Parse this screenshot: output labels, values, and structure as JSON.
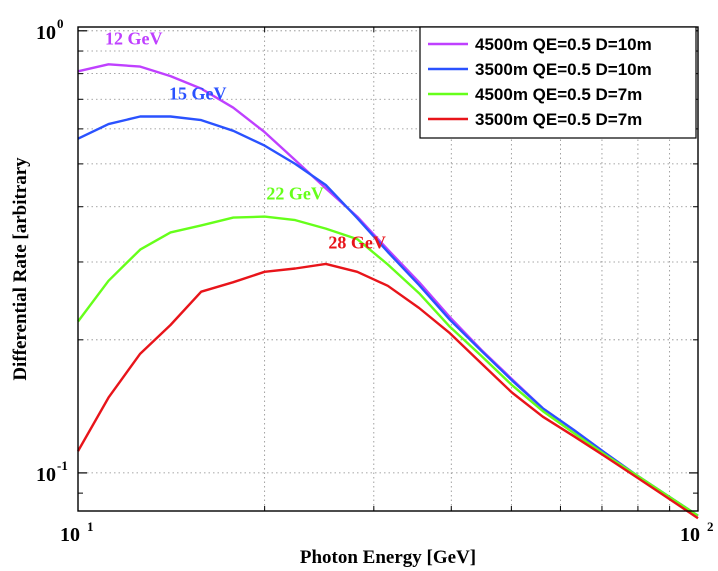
{
  "chart_data": {
    "type": "line",
    "title": "",
    "xlabel": "Photon Energy [GeV]",
    "ylabel": "Differential Rate [arbitrary",
    "xscale": "log",
    "yscale": "log",
    "xlim": [
      10,
      100
    ],
    "ylim": [
      0.082,
      1.02
    ],
    "grid": true,
    "legend_position": "top-right",
    "x_ticks": [
      {
        "base": "10",
        "exp": "1"
      },
      {
        "base": "10",
        "exp": "2"
      }
    ],
    "y_ticks": [
      {
        "base": "10",
        "exp": "-1"
      },
      {
        "base": "10",
        "exp": "0"
      }
    ],
    "x": [
      10,
      11.2,
      12.6,
      14.1,
      15.8,
      17.8,
      20,
      22.4,
      25.1,
      28.2,
      31.6,
      35.5,
      39.8,
      44.7,
      50.1,
      56.2,
      63.1,
      70.8,
      79.4,
      89.1,
      100
    ],
    "series": [
      {
        "name": "4500m QE=0.5 D=10m",
        "color": "#bf40ff",
        "values": [
          0.81,
          0.84,
          0.83,
          0.79,
          0.74,
          0.67,
          0.59,
          0.51,
          0.44,
          0.38,
          0.32,
          0.27,
          0.225,
          0.19,
          0.163,
          0.14,
          0.125,
          0.111,
          0.099,
          0.089,
          0.08
        ]
      },
      {
        "name": "3500m QE=0.5 D=10m",
        "color": "#2a52ff",
        "values": [
          0.57,
          0.615,
          0.64,
          0.64,
          0.628,
          0.594,
          0.55,
          0.5,
          0.448,
          0.377,
          0.316,
          0.266,
          0.222,
          0.189,
          0.162,
          0.14,
          0.125,
          0.111,
          0.099,
          0.089,
          0.08
        ]
      },
      {
        "name": "4500m QE=0.5 D=7m",
        "color": "#66ff1a",
        "values": [
          0.22,
          0.272,
          0.32,
          0.35,
          0.363,
          0.378,
          0.38,
          0.373,
          0.357,
          0.338,
          0.296,
          0.255,
          0.214,
          0.184,
          0.158,
          0.138,
          0.123,
          0.11,
          0.099,
          0.089,
          0.08
        ]
      },
      {
        "name": "3500m QE=0.5 D=7m",
        "color": "#e8141a",
        "values": [
          0.112,
          0.148,
          0.186,
          0.216,
          0.257,
          0.27,
          0.285,
          0.29,
          0.297,
          0.285,
          0.265,
          0.236,
          0.207,
          0.177,
          0.152,
          0.134,
          0.121,
          0.109,
          0.098,
          0.088,
          0.079
        ]
      }
    ],
    "annotations": [
      {
        "text": "12 GeV",
        "color": "#bf40ff",
        "x": 12.3,
        "y": 0.93
      },
      {
        "text": "15 GeV",
        "color": "#2a52ff",
        "x": 15.6,
        "y": 0.7
      },
      {
        "text": "22 GeV",
        "color": "#66ff1a",
        "x": 22.4,
        "y": 0.415
      },
      {
        "text": "28 GeV",
        "color": "#e8141a",
        "x": 28.2,
        "y": 0.322
      }
    ]
  }
}
